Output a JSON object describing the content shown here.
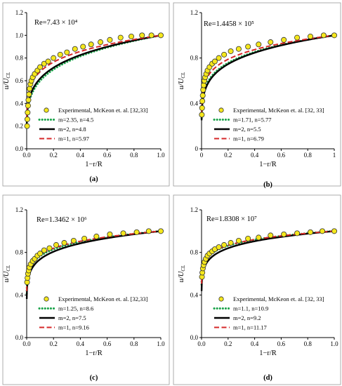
{
  "chart_data": [
    {
      "type": "line",
      "panel_label": "(a)",
      "annotation": "Re=7.43 × 10⁴",
      "ylabel": "u/U_CL",
      "xlabel": "1−r/R",
      "xlim": [
        0,
        1
      ],
      "ylim": [
        0,
        1.2
      ],
      "x_ticks": [
        "0.0",
        "0.2",
        "0.4",
        "0.6",
        "0.8",
        "1.0"
      ],
      "y_ticks": [
        "0.0",
        "0.2",
        "0.4",
        "0.6",
        "0.8",
        "1.0",
        "1.2"
      ],
      "legend_position": "bottom-right",
      "experimental": {
        "name": "Experimental, McKeon et. al. [32,33]",
        "x": [
          0.003,
          0.005,
          0.007,
          0.01,
          0.013,
          0.017,
          0.022,
          0.028,
          0.035,
          0.045,
          0.06,
          0.08,
          0.1,
          0.13,
          0.16,
          0.2,
          0.25,
          0.3,
          0.36,
          0.42,
          0.48,
          0.55,
          0.62,
          0.7,
          0.78,
          0.86,
          0.93,
          1.0
        ],
        "y": [
          0.2,
          0.26,
          0.32,
          0.38,
          0.43,
          0.48,
          0.53,
          0.57,
          0.6,
          0.63,
          0.66,
          0.69,
          0.72,
          0.75,
          0.77,
          0.8,
          0.83,
          0.85,
          0.88,
          0.9,
          0.92,
          0.94,
          0.96,
          0.98,
          0.99,
          1.0,
          1.0,
          1.0
        ]
      },
      "series": [
        {
          "name": "m=2.35, n=4.5",
          "n": 4.5,
          "style": "dotted",
          "color": "#1aa34a"
        },
        {
          "name": "m=2, n=4.8",
          "n": 4.8,
          "style": "solid",
          "color": "#000000"
        },
        {
          "name": "m=1, n=5.97",
          "n": 5.97,
          "style": "dashed",
          "color": "#d62728"
        }
      ]
    },
    {
      "type": "line",
      "panel_label": "(b)",
      "annotation": "Re=1.4458 × 10⁵",
      "ylabel": "u/U_CL",
      "xlabel": "1−r/R",
      "xlim": [
        0,
        1
      ],
      "ylim": [
        0,
        1.2
      ],
      "x_ticks": [
        "0",
        "0.2",
        "0.4",
        "0.6",
        "0.8",
        "1"
      ],
      "y_ticks": [
        "0",
        "0.4",
        "0.8",
        "1.2"
      ],
      "legend_position": "bottom-right",
      "experimental": {
        "name": "Experimental, McKeon et. al. [32, 33]",
        "x": [
          0.002,
          0.004,
          0.006,
          0.009,
          0.012,
          0.016,
          0.021,
          0.027,
          0.035,
          0.045,
          0.06,
          0.08,
          0.1,
          0.13,
          0.17,
          0.22,
          0.28,
          0.35,
          0.43,
          0.52,
          0.62,
          0.72,
          0.82,
          0.92,
          1.0
        ],
        "y": [
          0.3,
          0.36,
          0.42,
          0.47,
          0.52,
          0.56,
          0.6,
          0.63,
          0.66,
          0.69,
          0.72,
          0.75,
          0.77,
          0.8,
          0.83,
          0.86,
          0.88,
          0.9,
          0.92,
          0.94,
          0.96,
          0.98,
          0.99,
          1.0,
          1.0
        ]
      },
      "series": [
        {
          "name": "m=1.71, n=5.77",
          "n": 5.77,
          "style": "dotted",
          "color": "#1aa34a"
        },
        {
          "name": "m=2, n=5.5",
          "n": 5.5,
          "style": "solid",
          "color": "#000000"
        },
        {
          "name": "m=1, n=6.79",
          "n": 6.79,
          "style": "dashed",
          "color": "#d62728"
        }
      ]
    },
    {
      "type": "line",
      "panel_label": "(c)",
      "annotation": "Re=1.3462 × 10⁶",
      "ylabel": "u/U_CL",
      "xlabel": "1−r/R",
      "xlim": [
        0,
        1
      ],
      "ylim": [
        0,
        1.2
      ],
      "x_ticks": [
        "0.0",
        "0.2",
        "0.4",
        "0.6",
        "0.8",
        "1.0"
      ],
      "y_ticks": [
        "0.0",
        "0.4",
        "0.8",
        "1.2"
      ],
      "legend_position": "bottom-right",
      "experimental": {
        "name": "Experimental, McKeon et. al. [32,33]",
        "x": [
          0.003,
          0.006,
          0.01,
          0.015,
          0.02,
          0.03,
          0.045,
          0.06,
          0.08,
          0.1,
          0.13,
          0.17,
          0.22,
          0.28,
          0.35,
          0.43,
          0.52,
          0.62,
          0.72,
          0.82,
          0.91,
          1.0
        ],
        "y": [
          0.52,
          0.56,
          0.6,
          0.63,
          0.66,
          0.69,
          0.72,
          0.74,
          0.77,
          0.79,
          0.82,
          0.84,
          0.87,
          0.89,
          0.91,
          0.93,
          0.95,
          0.97,
          0.98,
          0.99,
          1.0,
          1.0
        ]
      },
      "series": [
        {
          "name": "m=1.25, n=8.6",
          "n": 8.6,
          "style": "dotted",
          "color": "#1aa34a"
        },
        {
          "name": "m=2, n=7.5",
          "n": 7.5,
          "style": "solid",
          "color": "#000000"
        },
        {
          "name": "m=1, n=9.16",
          "n": 9.16,
          "style": "dashed",
          "color": "#d62728"
        }
      ]
    },
    {
      "type": "line",
      "panel_label": "(d)",
      "annotation": "Re=1.8308 × 10⁷",
      "ylabel": "u/U_CL",
      "xlabel": "1−r/R",
      "xlim": [
        0,
        1
      ],
      "ylim": [
        0,
        1.2
      ],
      "x_ticks": [
        "0.0",
        "0.2",
        "0.4",
        "0.6",
        "0.8",
        "1.0"
      ],
      "y_ticks": [
        "0.0",
        "0.4",
        "0.8",
        "1.2"
      ],
      "legend_position": "bottom-right",
      "experimental": {
        "name": "Experimental, McKeon et. al. [32, 33]",
        "x": [
          0.003,
          0.006,
          0.01,
          0.015,
          0.022,
          0.032,
          0.045,
          0.06,
          0.08,
          0.1,
          0.13,
          0.17,
          0.22,
          0.28,
          0.35,
          0.43,
          0.52,
          0.62,
          0.72,
          0.82,
          0.91,
          1.0
        ],
        "y": [
          0.57,
          0.61,
          0.65,
          0.68,
          0.71,
          0.74,
          0.77,
          0.79,
          0.81,
          0.83,
          0.85,
          0.87,
          0.89,
          0.91,
          0.93,
          0.94,
          0.96,
          0.97,
          0.98,
          0.99,
          1.0,
          1.0
        ]
      },
      "series": [
        {
          "name": "m=1.1, n=10.9",
          "n": 10.9,
          "style": "dotted",
          "color": "#1aa34a"
        },
        {
          "name": "m=2, n=9.2",
          "n": 9.2,
          "style": "solid",
          "color": "#000000"
        },
        {
          "name": "m=1, n=11.17",
          "n": 11.17,
          "style": "dashed",
          "color": "#d62728"
        }
      ]
    }
  ],
  "colors": {
    "marker_fill": "#f5e71c",
    "marker_stroke": "#333333",
    "axis": "#000000",
    "frame": "#999999"
  }
}
